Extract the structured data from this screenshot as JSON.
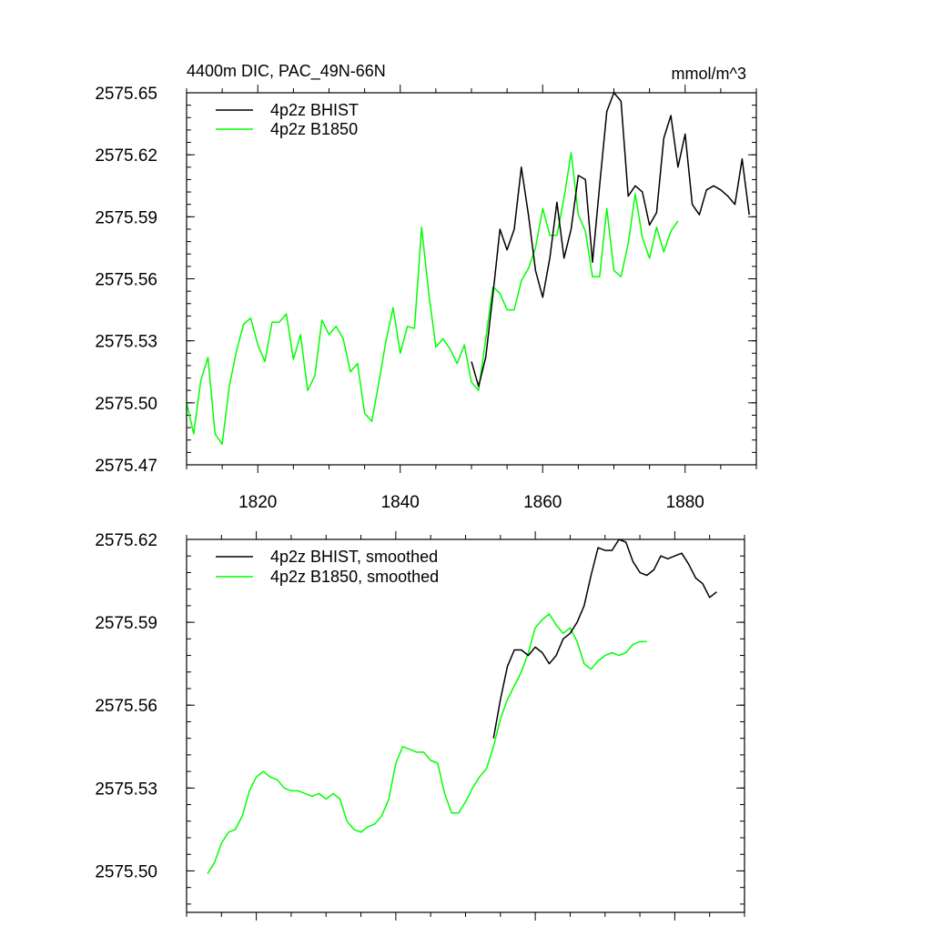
{
  "chart_data": [
    {
      "type": "line",
      "title_left": "4400m DIC, PAC_49N-66N",
      "title_right": "mmol/m^3",
      "xlabel": "",
      "ylabel": "",
      "xlim": [
        1810,
        1890
      ],
      "ylim": [
        2575.47,
        2575.65
      ],
      "xticks": [
        1820,
        1840,
        1860,
        1880
      ],
      "xtick_labels": [
        "1820",
        "1840",
        "1860",
        "1880"
      ],
      "yticks": [
        2575.47,
        2575.5,
        2575.53,
        2575.56,
        2575.59,
        2575.62,
        2575.65
      ],
      "ytick_labels": [
        "2575.47",
        "2575.50",
        "2575.53",
        "2575.56",
        "2575.59",
        "2575.62",
        "2575.65"
      ],
      "legend": "top-left",
      "series": [
        {
          "name": "4p2z BHIST",
          "color": "#000000",
          "x": [
            1850,
            1851,
            1852,
            1853,
            1854,
            1855,
            1856,
            1857,
            1858,
            1859,
            1860,
            1861,
            1862,
            1863,
            1864,
            1865,
            1866,
            1867,
            1868,
            1869,
            1870,
            1871,
            1872,
            1873,
            1874,
            1875,
            1876,
            1877,
            1878,
            1879,
            1880,
            1881,
            1882,
            1883,
            1884,
            1885,
            1886,
            1887,
            1888,
            1889
          ],
          "values": [
            2575.52,
            2575.508,
            2575.522,
            2575.552,
            2575.584,
            2575.574,
            2575.584,
            2575.614,
            2575.591,
            2575.564,
            2575.551,
            2575.57,
            2575.597,
            2575.57,
            2575.584,
            2575.61,
            2575.608,
            2575.568,
            2575.605,
            2575.641,
            2575.65,
            2575.646,
            2575.6,
            2575.605,
            2575.602,
            2575.586,
            2575.592,
            2575.628,
            2575.639,
            2575.614,
            2575.63,
            2575.596,
            2575.591,
            2575.603,
            2575.605,
            2575.603,
            2575.6,
            2575.596,
            2575.618,
            2575.591
          ]
        },
        {
          "name": "4p2z B1850",
          "color": "#00ff00",
          "x": [
            1810,
            1811,
            1812,
            1813,
            1814,
            1815,
            1816,
            1817,
            1818,
            1819,
            1820,
            1821,
            1822,
            1823,
            1824,
            1825,
            1826,
            1827,
            1828,
            1829,
            1830,
            1831,
            1832,
            1833,
            1834,
            1835,
            1836,
            1837,
            1838,
            1839,
            1840,
            1841,
            1842,
            1843,
            1844,
            1845,
            1846,
            1847,
            1848,
            1849,
            1850,
            1851,
            1852,
            1853,
            1854,
            1855,
            1856,
            1857,
            1858,
            1859,
            1860,
            1861,
            1862,
            1863,
            1864,
            1865,
            1866,
            1867,
            1868,
            1869,
            1870,
            1871,
            1872,
            1873,
            1874,
            1875,
            1876,
            1877,
            1878,
            1879
          ],
          "values": [
            2575.5,
            2575.485,
            2575.511,
            2575.522,
            2575.485,
            2575.48,
            2575.508,
            2575.525,
            2575.538,
            2575.541,
            2575.528,
            2575.52,
            2575.539,
            2575.539,
            2575.543,
            2575.521,
            2575.533,
            2575.506,
            2575.513,
            2575.54,
            2575.533,
            2575.537,
            2575.531,
            2575.515,
            2575.519,
            2575.495,
            2575.491,
            2575.51,
            2575.53,
            2575.546,
            2575.524,
            2575.537,
            2575.536,
            2575.585,
            2575.553,
            2575.527,
            2575.531,
            2575.526,
            2575.519,
            2575.528,
            2575.51,
            2575.506,
            2575.531,
            2575.556,
            2575.553,
            2575.545,
            2575.545,
            2575.559,
            2575.565,
            2575.575,
            2575.594,
            2575.581,
            2575.581,
            2575.599,
            2575.621,
            2575.591,
            2575.583,
            2575.561,
            2575.561,
            2575.594,
            2575.564,
            2575.561,
            2575.577,
            2575.601,
            2575.58,
            2575.57,
            2575.585,
            2575.573,
            2575.583,
            2575.588
          ]
        }
      ]
    },
    {
      "type": "line",
      "xlabel": "",
      "ylabel": "",
      "xlim": [
        1810,
        1890
      ],
      "ylim": [
        2575.485,
        2575.62
      ],
      "xticks": [
        1820,
        1840,
        1860,
        1880
      ],
      "yticks": [
        2575.5,
        2575.53,
        2575.56,
        2575.59,
        2575.62
      ],
      "ytick_labels": [
        "2575.50",
        "2575.53",
        "2575.56",
        "2575.59",
        "2575.62"
      ],
      "legend": "top-left",
      "series": [
        {
          "name": "4p2z BHIST, smoothed",
          "color": "#000000",
          "x": [
            1854,
            1855,
            1856,
            1857,
            1858,
            1859,
            1860,
            1861,
            1862,
            1863,
            1864,
            1865,
            1866,
            1867,
            1868,
            1869,
            1870,
            1871,
            1872,
            1873,
            1874,
            1875,
            1876,
            1877,
            1878,
            1879,
            1880,
            1881,
            1882,
            1883,
            1884,
            1885,
            1886
          ],
          "values": [
            2575.548,
            2575.562,
            2575.574,
            2575.58,
            2575.58,
            2575.578,
            2575.581,
            2575.579,
            2575.575,
            2575.578,
            2575.584,
            2575.586,
            2575.59,
            2575.596,
            2575.607,
            2575.617,
            2575.616,
            2575.616,
            2575.62,
            2575.619,
            2575.612,
            2575.608,
            2575.607,
            2575.609,
            2575.614,
            2575.613,
            2575.614,
            2575.615,
            2575.611,
            2575.606,
            2575.604,
            2575.599,
            2575.601
          ]
        },
        {
          "name": "4p2z B1850, smoothed",
          "color": "#00ff00",
          "x": [
            1813,
            1814,
            1815,
            1816,
            1817,
            1818,
            1819,
            1820,
            1821,
            1822,
            1823,
            1824,
            1825,
            1826,
            1827,
            1828,
            1829,
            1830,
            1831,
            1832,
            1833,
            1834,
            1835,
            1836,
            1837,
            1838,
            1839,
            1840,
            1841,
            1842,
            1843,
            1844,
            1845,
            1846,
            1847,
            1848,
            1849,
            1850,
            1851,
            1852,
            1853,
            1854,
            1855,
            1856,
            1857,
            1858,
            1859,
            1860,
            1861,
            1862,
            1863,
            1864,
            1865,
            1866,
            1867,
            1868,
            1869,
            1870,
            1871,
            1872,
            1873,
            1874,
            1875,
            1876
          ],
          "values": [
            2575.499,
            2575.503,
            2575.51,
            2575.514,
            2575.515,
            2575.52,
            2575.529,
            2575.534,
            2575.536,
            2575.534,
            2575.533,
            2575.53,
            2575.529,
            2575.529,
            2575.528,
            2575.527,
            2575.528,
            2575.526,
            2575.528,
            2575.526,
            2575.518,
            2575.515,
            2575.514,
            2575.516,
            2575.517,
            2575.52,
            2575.526,
            2575.539,
            2575.545,
            2575.544,
            2575.543,
            2575.543,
            2575.54,
            2575.539,
            2575.528,
            2575.521,
            2575.521,
            2575.525,
            2575.53,
            2575.534,
            2575.537,
            2575.545,
            2575.555,
            2575.562,
            2575.567,
            2575.572,
            2575.579,
            2575.588,
            2575.591,
            2575.593,
            2575.589,
            2575.586,
            2575.588,
            2575.583,
            2575.575,
            2575.573,
            2575.576,
            2575.578,
            2575.579,
            2575.578,
            2575.579,
            2575.582,
            2575.583,
            2575.583
          ]
        }
      ]
    }
  ]
}
